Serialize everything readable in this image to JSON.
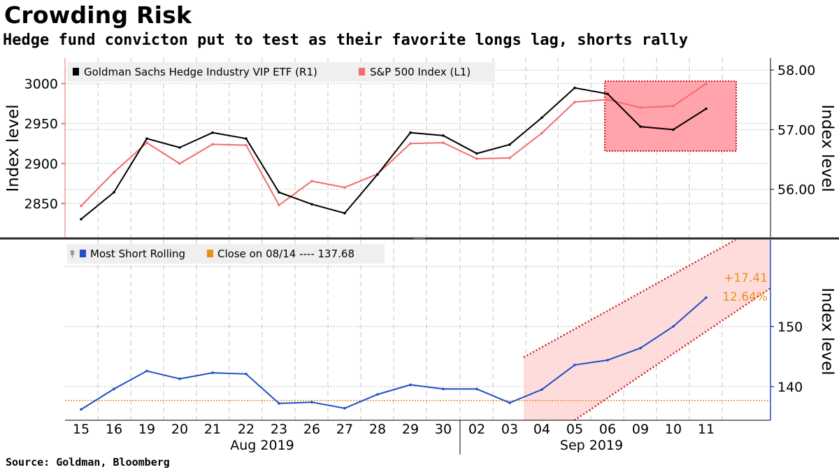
{
  "title": "Crowding Risk",
  "subtitle": "Hedge fund convicton put to test as their favorite longs lag, shorts rally",
  "source": "Source: Goldman, Bloomberg",
  "colors": {
    "etf": "#000000",
    "spx": "#f26d6d",
    "short": "#1f4fc4",
    "reference": "#e8901a",
    "highlight_fill": "#ffa3ad",
    "channel_fill": "#ffd6d6",
    "channel_border": "#d11a1a"
  },
  "chart_data": [
    {
      "type": "line",
      "panel": "top",
      "x": [
        "15",
        "16",
        "19",
        "20",
        "21",
        "22",
        "23",
        "26",
        "27",
        "28",
        "29",
        "30",
        "02",
        "03",
        "04",
        "05",
        "06",
        "09",
        "10",
        "11"
      ],
      "months": [
        {
          "label": "Aug 2019"
        },
        {
          "label": "Sep 2019"
        }
      ],
      "ylabel_left": "Index level",
      "ylabel_right": "Index level",
      "yticks_left": [
        "2850",
        "2900",
        "2950",
        "3000"
      ],
      "yticks_right": [
        "56.00",
        "57.00",
        "58.00"
      ],
      "ylim_left": [
        2808,
        3032
      ],
      "ylim_right": [
        55.2,
        58.2
      ],
      "legend": [
        {
          "label": "Goldman Sachs Hedge Industry VIP ETF  (R1)",
          "series": "etf"
        },
        {
          "label": "S&P 500 Index  (L1)",
          "series": "spx"
        }
      ],
      "legend_position": "top-left",
      "grid": true,
      "series": [
        {
          "name": "Goldman Sachs Hedge Industry VIP ETF  (R1)",
          "axis": "right",
          "values": [
            55.5,
            55.95,
            56.85,
            56.7,
            56.95,
            56.85,
            55.95,
            55.75,
            55.6,
            56.25,
            56.95,
            56.9,
            56.6,
            56.75,
            57.2,
            57.7,
            57.6,
            57.05,
            57.0,
            57.35
          ]
        },
        {
          "name": "S&P 500 Index  (L1)",
          "axis": "left",
          "values": [
            2847,
            2889,
            2926,
            2900,
            2924,
            2923,
            2848,
            2878,
            2870,
            2887,
            2925,
            2926,
            2906,
            2907,
            2938,
            2977,
            2980,
            2970,
            2972,
            3000
          ]
        }
      ],
      "annotations": [
        {
          "type": "highlight-box",
          "from": "06",
          "to": "11"
        }
      ]
    },
    {
      "type": "line",
      "panel": "bottom",
      "x": [
        "15",
        "16",
        "19",
        "20",
        "21",
        "22",
        "23",
        "26",
        "27",
        "28",
        "29",
        "30",
        "02",
        "03",
        "04",
        "05",
        "06",
        "09",
        "10",
        "11"
      ],
      "ylabel_right": "Index level",
      "yticks_right": [
        "140",
        "150"
      ],
      "ylim_right": [
        134.4,
        164.4
      ],
      "legend": [
        {
          "label": "Most Short Rolling",
          "series": "short"
        },
        {
          "label": "Close on 08/14 ---- 137.68",
          "series": "reference"
        }
      ],
      "legend_position": "top-left",
      "grid": true,
      "series": [
        {
          "name": "Most Short Rolling",
          "values": [
            136.2,
            139.6,
            142.6,
            141.3,
            142.3,
            142.1,
            137.2,
            137.4,
            136.4,
            138.7,
            140.3,
            139.6,
            139.6,
            137.3,
            139.5,
            143.6,
            144.4,
            146.4,
            150.0,
            154.8
          ]
        }
      ],
      "reference_line": {
        "value": 137.68
      },
      "annotations": [
        {
          "type": "trend-channel",
          "from": "04",
          "to": "11"
        },
        {
          "text": "+17.41"
        },
        {
          "text": "12.64%"
        }
      ]
    }
  ]
}
